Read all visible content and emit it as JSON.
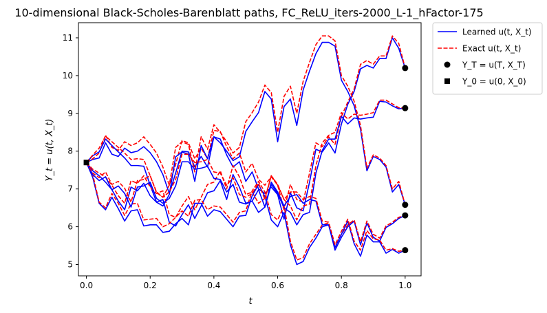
{
  "chart_data": {
    "type": "line",
    "title": "10-dimensional Black-Scholes-Barenblatt paths, FC_ReLU_iters-2000_L-1_hFactor-175",
    "xlabel": "t",
    "ylabel": "Y_t = u(t, X_t)",
    "xlim": [
      -0.025,
      1.05
    ],
    "ylim": [
      4.7,
      11.4
    ],
    "xticks": [
      0.0,
      0.2,
      0.4,
      0.6,
      0.8,
      1.0
    ],
    "yticks": [
      5,
      6,
      7,
      8,
      9,
      10,
      11
    ],
    "xtick_labels": [
      "0.0",
      "0.2",
      "0.4",
      "0.6",
      "0.8",
      "1.0"
    ],
    "ytick_labels": [
      "5",
      "6",
      "7",
      "8",
      "9",
      "10",
      "11"
    ],
    "grid": false,
    "legend_placement": "outside-top-right",
    "legend": [
      {
        "label": "Learned u(t, X_t)",
        "style": "solid-line",
        "color": "#0000ff"
      },
      {
        "label": "Exact u(t, X_t)",
        "style": "dashed-line",
        "color": "#ff0000"
      },
      {
        "label": "Y_T = u(T, X_T)",
        "style": "circle-marker",
        "color": "#000000"
      },
      {
        "label": "Y_0 = u(0, X_0)",
        "style": "square-marker",
        "color": "#000000"
      }
    ],
    "x": [
      0.0,
      0.02,
      0.04,
      0.06,
      0.08,
      0.1,
      0.12,
      0.14,
      0.16,
      0.18,
      0.2,
      0.22,
      0.24,
      0.26,
      0.28,
      0.3,
      0.32,
      0.34,
      0.36,
      0.38,
      0.4,
      0.42,
      0.44,
      0.46,
      0.48,
      0.5,
      0.52,
      0.54,
      0.56,
      0.58,
      0.6,
      0.62,
      0.64,
      0.66,
      0.68,
      0.7,
      0.72,
      0.74,
      0.76,
      0.78,
      0.8,
      0.82,
      0.84,
      0.86,
      0.88,
      0.9,
      0.92,
      0.94,
      0.96,
      0.98,
      1.0
    ],
    "series": [
      {
        "kind": "learned",
        "values": [
          7.7,
          7.78,
          7.82,
          8.22,
          7.92,
          7.86,
          8.08,
          7.96,
          8.0,
          8.12,
          7.96,
          7.72,
          7.38,
          6.88,
          7.42,
          8.0,
          7.98,
          7.58,
          7.86,
          7.58,
          8.38,
          8.32,
          7.9,
          7.58,
          7.72,
          7.2,
          7.45,
          7.0,
          6.88,
          7.05,
          6.85,
          6.2,
          6.9,
          6.5,
          6.42,
          7.18,
          8.05,
          7.98,
          8.22,
          7.95,
          8.72,
          9.24,
          9.58,
          10.18,
          10.27,
          10.2,
          10.45,
          10.45,
          11.0,
          10.72,
          10.2
        ]
      },
      {
        "kind": "exact",
        "values": [
          7.7,
          7.8,
          7.95,
          8.42,
          8.1,
          8.02,
          8.25,
          8.15,
          8.22,
          8.38,
          8.18,
          7.95,
          7.58,
          7.1,
          7.65,
          8.28,
          8.22,
          7.8,
          8.08,
          7.8,
          8.55,
          8.52,
          8.12,
          7.8,
          7.95,
          7.45,
          7.68,
          7.25,
          7.1,
          7.32,
          7.1,
          6.45,
          7.12,
          6.72,
          6.65,
          7.42,
          8.22,
          8.12,
          8.38,
          8.18,
          8.92,
          9.3,
          9.65,
          10.3,
          10.4,
          10.3,
          10.52,
          10.52,
          11.05,
          10.85,
          10.2
        ]
      },
      {
        "kind": "learned",
        "values": [
          7.7,
          7.88,
          7.98,
          8.32,
          8.15,
          7.98,
          7.82,
          7.62,
          7.62,
          7.6,
          7.1,
          6.65,
          6.55,
          6.85,
          7.85,
          7.98,
          7.92,
          7.2,
          8.15,
          7.8,
          8.38,
          8.22,
          8.0,
          7.75,
          7.85,
          8.52,
          8.78,
          9.02,
          9.58,
          9.38,
          8.25,
          9.18,
          9.38,
          8.68,
          9.62,
          10.12,
          10.58,
          10.88,
          10.88,
          10.78,
          9.88,
          9.58,
          9.2,
          8.58,
          7.48,
          7.86,
          7.78,
          7.58,
          6.92,
          7.12,
          6.58
        ]
      },
      {
        "kind": "exact",
        "values": [
          7.7,
          7.9,
          8.08,
          8.4,
          8.25,
          8.1,
          7.95,
          7.78,
          7.8,
          7.78,
          7.35,
          6.9,
          6.78,
          7.1,
          8.1,
          8.25,
          8.18,
          7.45,
          8.38,
          8.05,
          8.7,
          8.5,
          8.25,
          7.95,
          8.1,
          8.78,
          9.02,
          9.3,
          9.75,
          9.55,
          8.5,
          9.45,
          9.72,
          9.0,
          9.85,
          10.35,
          10.82,
          11.05,
          11.05,
          10.92,
          10.0,
          9.72,
          9.32,
          8.68,
          7.55,
          7.9,
          7.82,
          7.62,
          7.0,
          7.2,
          6.58
        ]
      },
      {
        "kind": "learned",
        "values": [
          7.7,
          7.48,
          7.35,
          7.18,
          6.98,
          6.68,
          6.45,
          7.05,
          6.95,
          7.15,
          6.82,
          6.65,
          6.72,
          6.12,
          6.02,
          6.32,
          6.58,
          6.22,
          6.55,
          6.9,
          6.95,
          7.22,
          6.72,
          7.38,
          7.05,
          6.62,
          6.68,
          6.38,
          6.52,
          7.12,
          6.88,
          6.5,
          6.38,
          6.05,
          6.32,
          6.38,
          7.42,
          8.02,
          8.32,
          8.32,
          8.92,
          8.72,
          8.88,
          8.85,
          8.88,
          8.9,
          9.32,
          9.3,
          9.2,
          9.12,
          9.14
        ]
      },
      {
        "kind": "exact",
        "values": [
          7.7,
          7.52,
          7.42,
          7.32,
          7.1,
          6.82,
          6.62,
          7.22,
          7.15,
          7.35,
          7.05,
          6.88,
          6.95,
          6.32,
          6.25,
          6.55,
          6.8,
          6.45,
          6.78,
          7.12,
          7.18,
          7.48,
          7.0,
          7.62,
          7.32,
          6.85,
          6.92,
          6.62,
          6.75,
          7.35,
          7.1,
          6.72,
          6.55,
          6.18,
          6.55,
          6.6,
          7.62,
          8.22,
          8.42,
          8.5,
          9.02,
          8.85,
          8.98,
          8.95,
          8.98,
          9.02,
          9.35,
          9.35,
          9.25,
          9.15,
          9.14
        ]
      },
      {
        "kind": "learned",
        "values": [
          7.7,
          7.3,
          6.62,
          6.45,
          6.78,
          6.48,
          6.15,
          6.42,
          6.45,
          6.02,
          6.05,
          6.05,
          5.85,
          5.88,
          6.08,
          6.22,
          6.05,
          6.62,
          6.62,
          6.28,
          6.45,
          6.4,
          6.2,
          6.0,
          6.28,
          6.3,
          6.82,
          7.12,
          6.8,
          6.18,
          6.0,
          6.38,
          5.52,
          5.0,
          5.08,
          5.45,
          5.7,
          6.0,
          6.05,
          5.38,
          5.72,
          6.0,
          6.15,
          5.52,
          6.1,
          5.72,
          5.62,
          5.98,
          6.08,
          6.22,
          6.3
        ]
      },
      {
        "kind": "exact",
        "values": [
          7.7,
          7.38,
          6.65,
          6.5,
          6.88,
          6.62,
          6.3,
          6.6,
          6.62,
          6.18,
          6.2,
          6.22,
          6.0,
          6.08,
          6.25,
          6.42,
          6.28,
          6.7,
          6.72,
          6.45,
          6.55,
          6.52,
          6.32,
          6.12,
          6.38,
          6.42,
          6.95,
          7.2,
          6.92,
          6.32,
          6.18,
          6.55,
          5.62,
          5.12,
          5.18,
          5.55,
          5.8,
          6.05,
          6.1,
          5.45,
          5.8,
          6.05,
          6.18,
          5.6,
          6.15,
          5.8,
          5.7,
          6.02,
          6.12,
          6.25,
          6.3
        ]
      },
      {
        "kind": "learned",
        "values": [
          7.7,
          7.38,
          7.22,
          7.32,
          6.98,
          7.08,
          6.88,
          6.52,
          7.05,
          7.08,
          7.18,
          6.75,
          6.62,
          6.75,
          7.08,
          7.72,
          7.72,
          7.52,
          7.55,
          7.6,
          7.28,
          7.25,
          6.92,
          7.12,
          6.65,
          6.6,
          6.68,
          6.98,
          6.52,
          7.18,
          6.92,
          6.55,
          6.8,
          6.85,
          6.62,
          6.72,
          6.68,
          6.05,
          6.05,
          5.45,
          5.8,
          6.15,
          5.55,
          5.22,
          5.78,
          5.6,
          5.6,
          5.3,
          5.4,
          5.3,
          5.38
        ]
      },
      {
        "kind": "exact",
        "values": [
          7.7,
          7.42,
          7.3,
          7.45,
          7.12,
          7.2,
          7.02,
          6.65,
          7.22,
          7.25,
          7.35,
          6.92,
          6.78,
          6.92,
          7.25,
          7.92,
          7.92,
          7.7,
          7.72,
          7.78,
          7.45,
          7.42,
          7.1,
          7.3,
          6.85,
          6.78,
          6.88,
          7.15,
          6.72,
          7.35,
          7.12,
          6.72,
          6.92,
          6.92,
          6.72,
          6.8,
          6.75,
          6.15,
          6.12,
          5.52,
          5.88,
          6.2,
          5.62,
          5.38,
          5.9,
          5.68,
          5.65,
          5.38,
          5.42,
          5.35,
          5.38
        ]
      }
    ],
    "markers": {
      "terminal": {
        "x": 1.0,
        "values": [
          10.2,
          9.14,
          6.58,
          6.3,
          5.38
        ]
      },
      "initial": {
        "x": 0.0,
        "value": 7.7
      }
    },
    "colors": {
      "learned": "#0000ff",
      "exact": "#ff0000",
      "marker": "#000000",
      "axis": "#000000"
    }
  }
}
